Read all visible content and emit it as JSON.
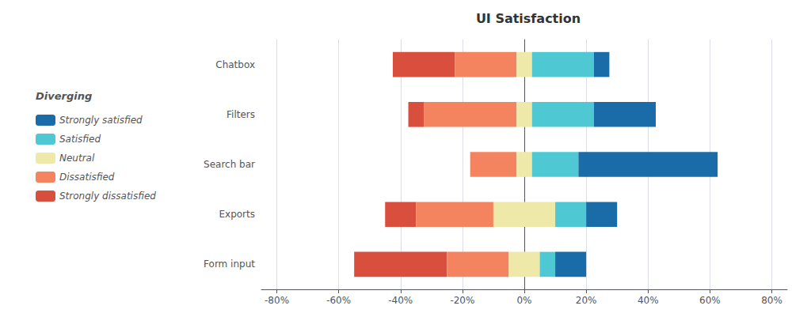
{
  "chart_data": {
    "type": "bar",
    "orientation": "horizontal",
    "stacked": true,
    "title": "UI Satisfaction",
    "categories": [
      "Chatbox",
      "Filters",
      "Search bar",
      "Exports",
      "Form input"
    ],
    "series": [
      {
        "name": "Strongly dissatisfied",
        "color": "#d94f3d",
        "values": [
          -20,
          -5,
          0,
          -10,
          -30
        ]
      },
      {
        "name": "Dissatisfied",
        "color": "#f4845f",
        "values": [
          -20,
          -30,
          -15,
          -25,
          -20
        ]
      },
      {
        "name": "Neutral",
        "color": "#eee8a9",
        "values": [
          5,
          5,
          5,
          20,
          10
        ]
      },
      {
        "name": "Satisfied",
        "color": "#4ec9d4",
        "values": [
          20,
          20,
          15,
          10,
          5
        ]
      },
      {
        "name": "Strongly satisfied",
        "color": "#1a6ca8",
        "values": [
          5,
          20,
          45,
          10,
          10
        ]
      }
    ],
    "xlim": [
      -85,
      85
    ],
    "xticks": [
      {
        "value": -80,
        "label": "-80%"
      },
      {
        "value": -60,
        "label": "-60%"
      },
      {
        "value": -40,
        "label": "-40%"
      },
      {
        "value": -20,
        "label": "-20%"
      },
      {
        "value": 0,
        "label": "0%"
      },
      {
        "value": 20,
        "label": "20%"
      },
      {
        "value": 40,
        "label": "40%"
      },
      {
        "value": 60,
        "label": "60%"
      },
      {
        "value": 80,
        "label": "80%"
      }
    ],
    "grid": true,
    "legend": "left",
    "legend_title": "Diverging"
  }
}
